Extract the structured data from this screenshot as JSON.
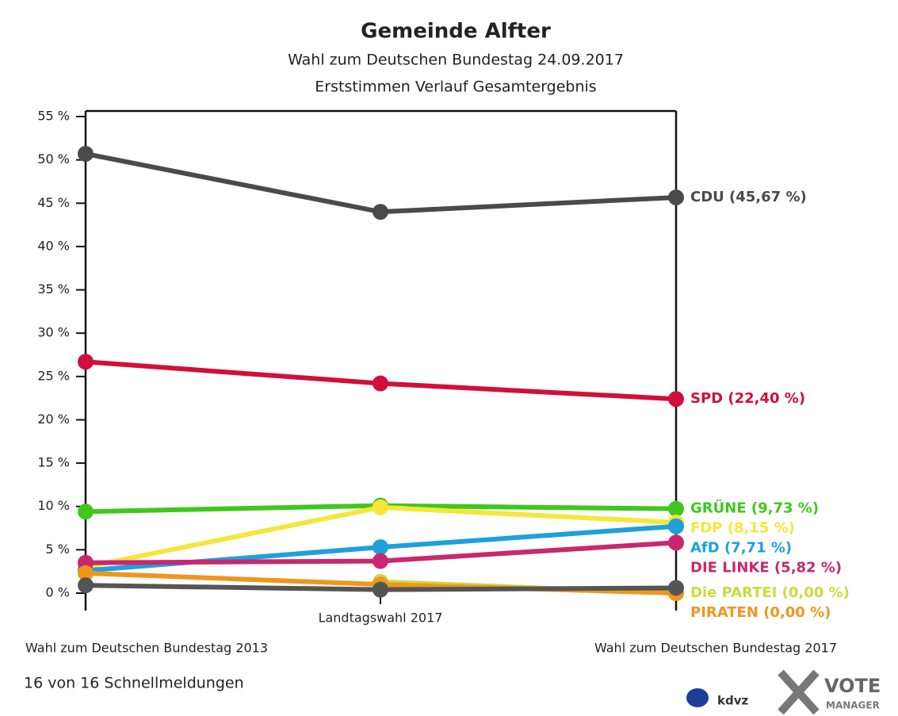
{
  "chart_data": {
    "type": "line",
    "title": "Gemeinde Alfter",
    "subtitle": "Wahl zum Deutschen Bundestag 24.09.2017",
    "subtitle2": "Erststimmen Verlauf Gesamtergebnis",
    "categories": [
      "Wahl zum Deutschen Bundestag 2013",
      "Landtagswahl 2017",
      "Wahl zum Deutschen Bundestag 2017"
    ],
    "ylim": [
      0,
      55
    ],
    "yticks": [
      {
        "value": 0,
        "label": "0 %"
      },
      {
        "value": 5,
        "label": "5 %"
      },
      {
        "value": 10,
        "label": "10 %"
      },
      {
        "value": 15,
        "label": "15 %"
      },
      {
        "value": 20,
        "label": "20 %"
      },
      {
        "value": 25,
        "label": "25 %"
      },
      {
        "value": 30,
        "label": "30 %"
      },
      {
        "value": 35,
        "label": "35 %"
      },
      {
        "value": 40,
        "label": "40 %"
      },
      {
        "value": 45,
        "label": "45 %"
      },
      {
        "value": 50,
        "label": "50 %"
      },
      {
        "value": 55,
        "label": "55 %"
      }
    ],
    "series": [
      {
        "name": "CDU",
        "color": "#4a4a4a",
        "values": [
          50.7,
          44.0,
          45.67
        ],
        "value_labels": [
          null,
          null,
          "CDU (45,67 %)"
        ]
      },
      {
        "name": "SPD",
        "color": "#d0103a",
        "values": [
          26.7,
          24.2,
          22.4
        ],
        "value_labels": [
          null,
          null,
          "SPD (22,40 %)"
        ]
      },
      {
        "name": "GRÜNE",
        "color": "#3ec81e",
        "values": [
          9.4,
          10.1,
          9.73
        ],
        "value_labels": [
          null,
          null,
          "GRÜNE (9,73 %)"
        ]
      },
      {
        "name": "FDP",
        "color": "#f5e63c",
        "values": [
          3.0,
          9.9,
          8.15
        ],
        "value_labels": [
          null,
          null,
          "FDP (8,15 %)"
        ]
      },
      {
        "name": "AfD",
        "color": "#1ea0dc",
        "values": [
          2.6,
          5.3,
          7.71
        ],
        "value_labels": [
          null,
          null,
          "AfD (7,71 %)"
        ]
      },
      {
        "name": "DIE LINKE",
        "color": "#c8286e",
        "values": [
          3.5,
          3.7,
          5.82
        ],
        "value_labels": [
          null,
          null,
          "DIE LINKE (5,82 %)"
        ]
      },
      {
        "name": "Die PARTEI",
        "color": "#c8dc3c",
        "values": [
          null,
          1.3,
          0.0
        ],
        "value_labels": [
          null,
          null,
          "Die PARTEI (0,00 %)"
        ]
      },
      {
        "name": "PIRATEN",
        "color": "#f0961e",
        "values": [
          2.3,
          1.0,
          0.0
        ],
        "value_labels": [
          null,
          null,
          "PIRATEN (0,00 %)"
        ]
      },
      {
        "color": "#555555",
        "values": [
          0.9,
          0.4,
          0.6
        ]
      }
    ],
    "footer": "16 von 16 Schnellmeldungen",
    "logo_texts": [
      "kdvz",
      "VOTE",
      "MANAGER"
    ]
  }
}
